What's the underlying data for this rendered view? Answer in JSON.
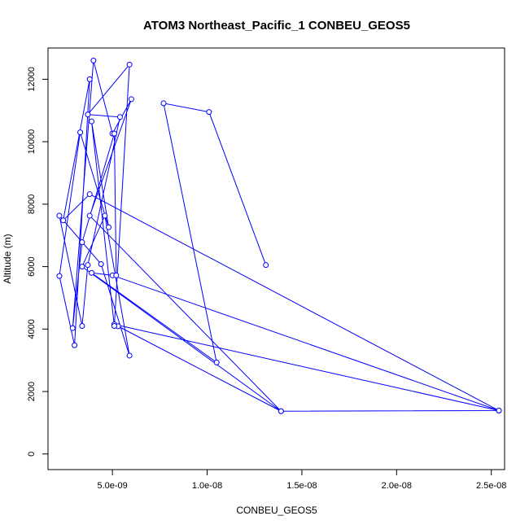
{
  "chart_data": {
    "type": "line",
    "title": "ATOM3 Northeast_Pacific_1 CONBEU_GEOS5",
    "xlabel": "CONBEU_GEOS5",
    "ylabel": "Altitude (m)",
    "xlim": [
      1.6e-09,
      2.57e-08
    ],
    "ylim": [
      -500,
      13000
    ],
    "x_ticks": [
      5e-09,
      1e-08,
      1.5e-08,
      2e-08,
      2.5e-08
    ],
    "x_tick_labels": [
      "5.0e-09",
      "1.0e-08",
      "1.5e-08",
      "2.0e-08",
      "2.5e-08"
    ],
    "y_ticks": [
      0,
      2000,
      4000,
      6000,
      8000,
      10000,
      12000
    ],
    "y_tick_labels": [
      "0",
      "2000",
      "4000",
      "6000",
      "8000",
      "10000",
      "12000"
    ],
    "grid": false,
    "legend": "none",
    "series_color": "#0000ff",
    "series": [
      {
        "points": [
          [
            1.31e-08,
            6050
          ],
          [
            1.01e-08,
            10950
          ],
          [
            7.7e-09,
            11230
          ],
          [
            1.05e-08,
            2930
          ],
          [
            3.9e-09,
            5800
          ],
          [
            5e-09,
            5720
          ],
          [
            2.54e-08,
            1390
          ],
          [
            5.1e-09,
            4150
          ],
          [
            5.3e-09,
            4090
          ],
          [
            1.39e-08,
            1370
          ],
          [
            3.4e-09,
            6000
          ],
          [
            4.6e-09,
            7630
          ],
          [
            5.9e-09,
            3150
          ],
          [
            4.4e-09,
            6080
          ],
          [
            2.2e-09,
            7630
          ],
          [
            3.4e-09,
            4100
          ],
          [
            3.7e-09,
            6050
          ],
          [
            5.4e-09,
            10790
          ],
          [
            3.7e-09,
            10870
          ],
          [
            5.9e-09,
            12470
          ],
          [
            5.1e-09,
            4100
          ],
          [
            3.9e-09,
            10650
          ],
          [
            4.8e-09,
            7260
          ],
          [
            3.3e-09,
            10300
          ],
          [
            2.2e-09,
            5700
          ],
          [
            3e-09,
            3480
          ],
          [
            3.8e-09,
            12000
          ],
          [
            2.4e-09,
            7480
          ],
          [
            3.8e-09,
            8320
          ],
          [
            2.54e-08,
            1390
          ],
          [
            1.39e-08,
            1370
          ],
          [
            3.8e-09,
            7630
          ],
          [
            6e-09,
            11360
          ],
          [
            5e-09,
            10260
          ],
          [
            4e-09,
            12600
          ],
          [
            2.9e-09,
            4030
          ],
          [
            3.4e-09,
            6780
          ],
          [
            5.1e-09,
            10260
          ],
          [
            5.2e-09,
            5720
          ]
        ]
      }
    ]
  }
}
